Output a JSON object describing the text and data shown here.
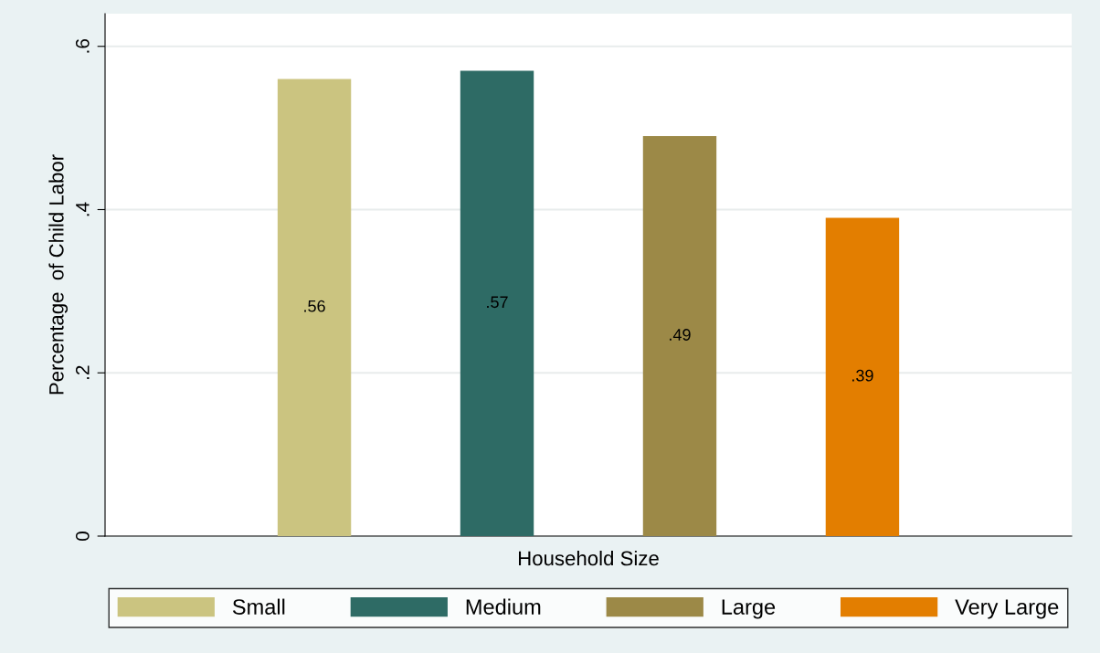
{
  "chart_data": {
    "type": "bar",
    "xlabel": "Household Size",
    "ylabel": "Percentage  of Child Labor",
    "categories": [
      null
    ],
    "series": [
      {
        "name": "Small",
        "color": "#cbc480",
        "values": [
          0.56
        ],
        "value_labels": [
          ".56"
        ]
      },
      {
        "name": "Medium",
        "color": "#2e6b65",
        "values": [
          0.57
        ],
        "value_labels": [
          ".57"
        ]
      },
      {
        "name": "Large",
        "color": "#9c8947",
        "values": [
          0.49
        ],
        "value_labels": [
          ".49"
        ]
      },
      {
        "name": "Very Large",
        "color": "#e37e00",
        "values": [
          0.39
        ],
        "value_labels": [
          ".39"
        ]
      }
    ],
    "ylim": [
      0,
      0.64
    ],
    "yticks": [
      {
        "value": 0,
        "label": "0"
      },
      {
        "value": 0.2,
        "label": ".2"
      },
      {
        "value": 0.4,
        "label": ".4"
      },
      {
        "value": 0.6,
        "label": ".6"
      }
    ],
    "grid": "y",
    "legend": "bottom"
  }
}
